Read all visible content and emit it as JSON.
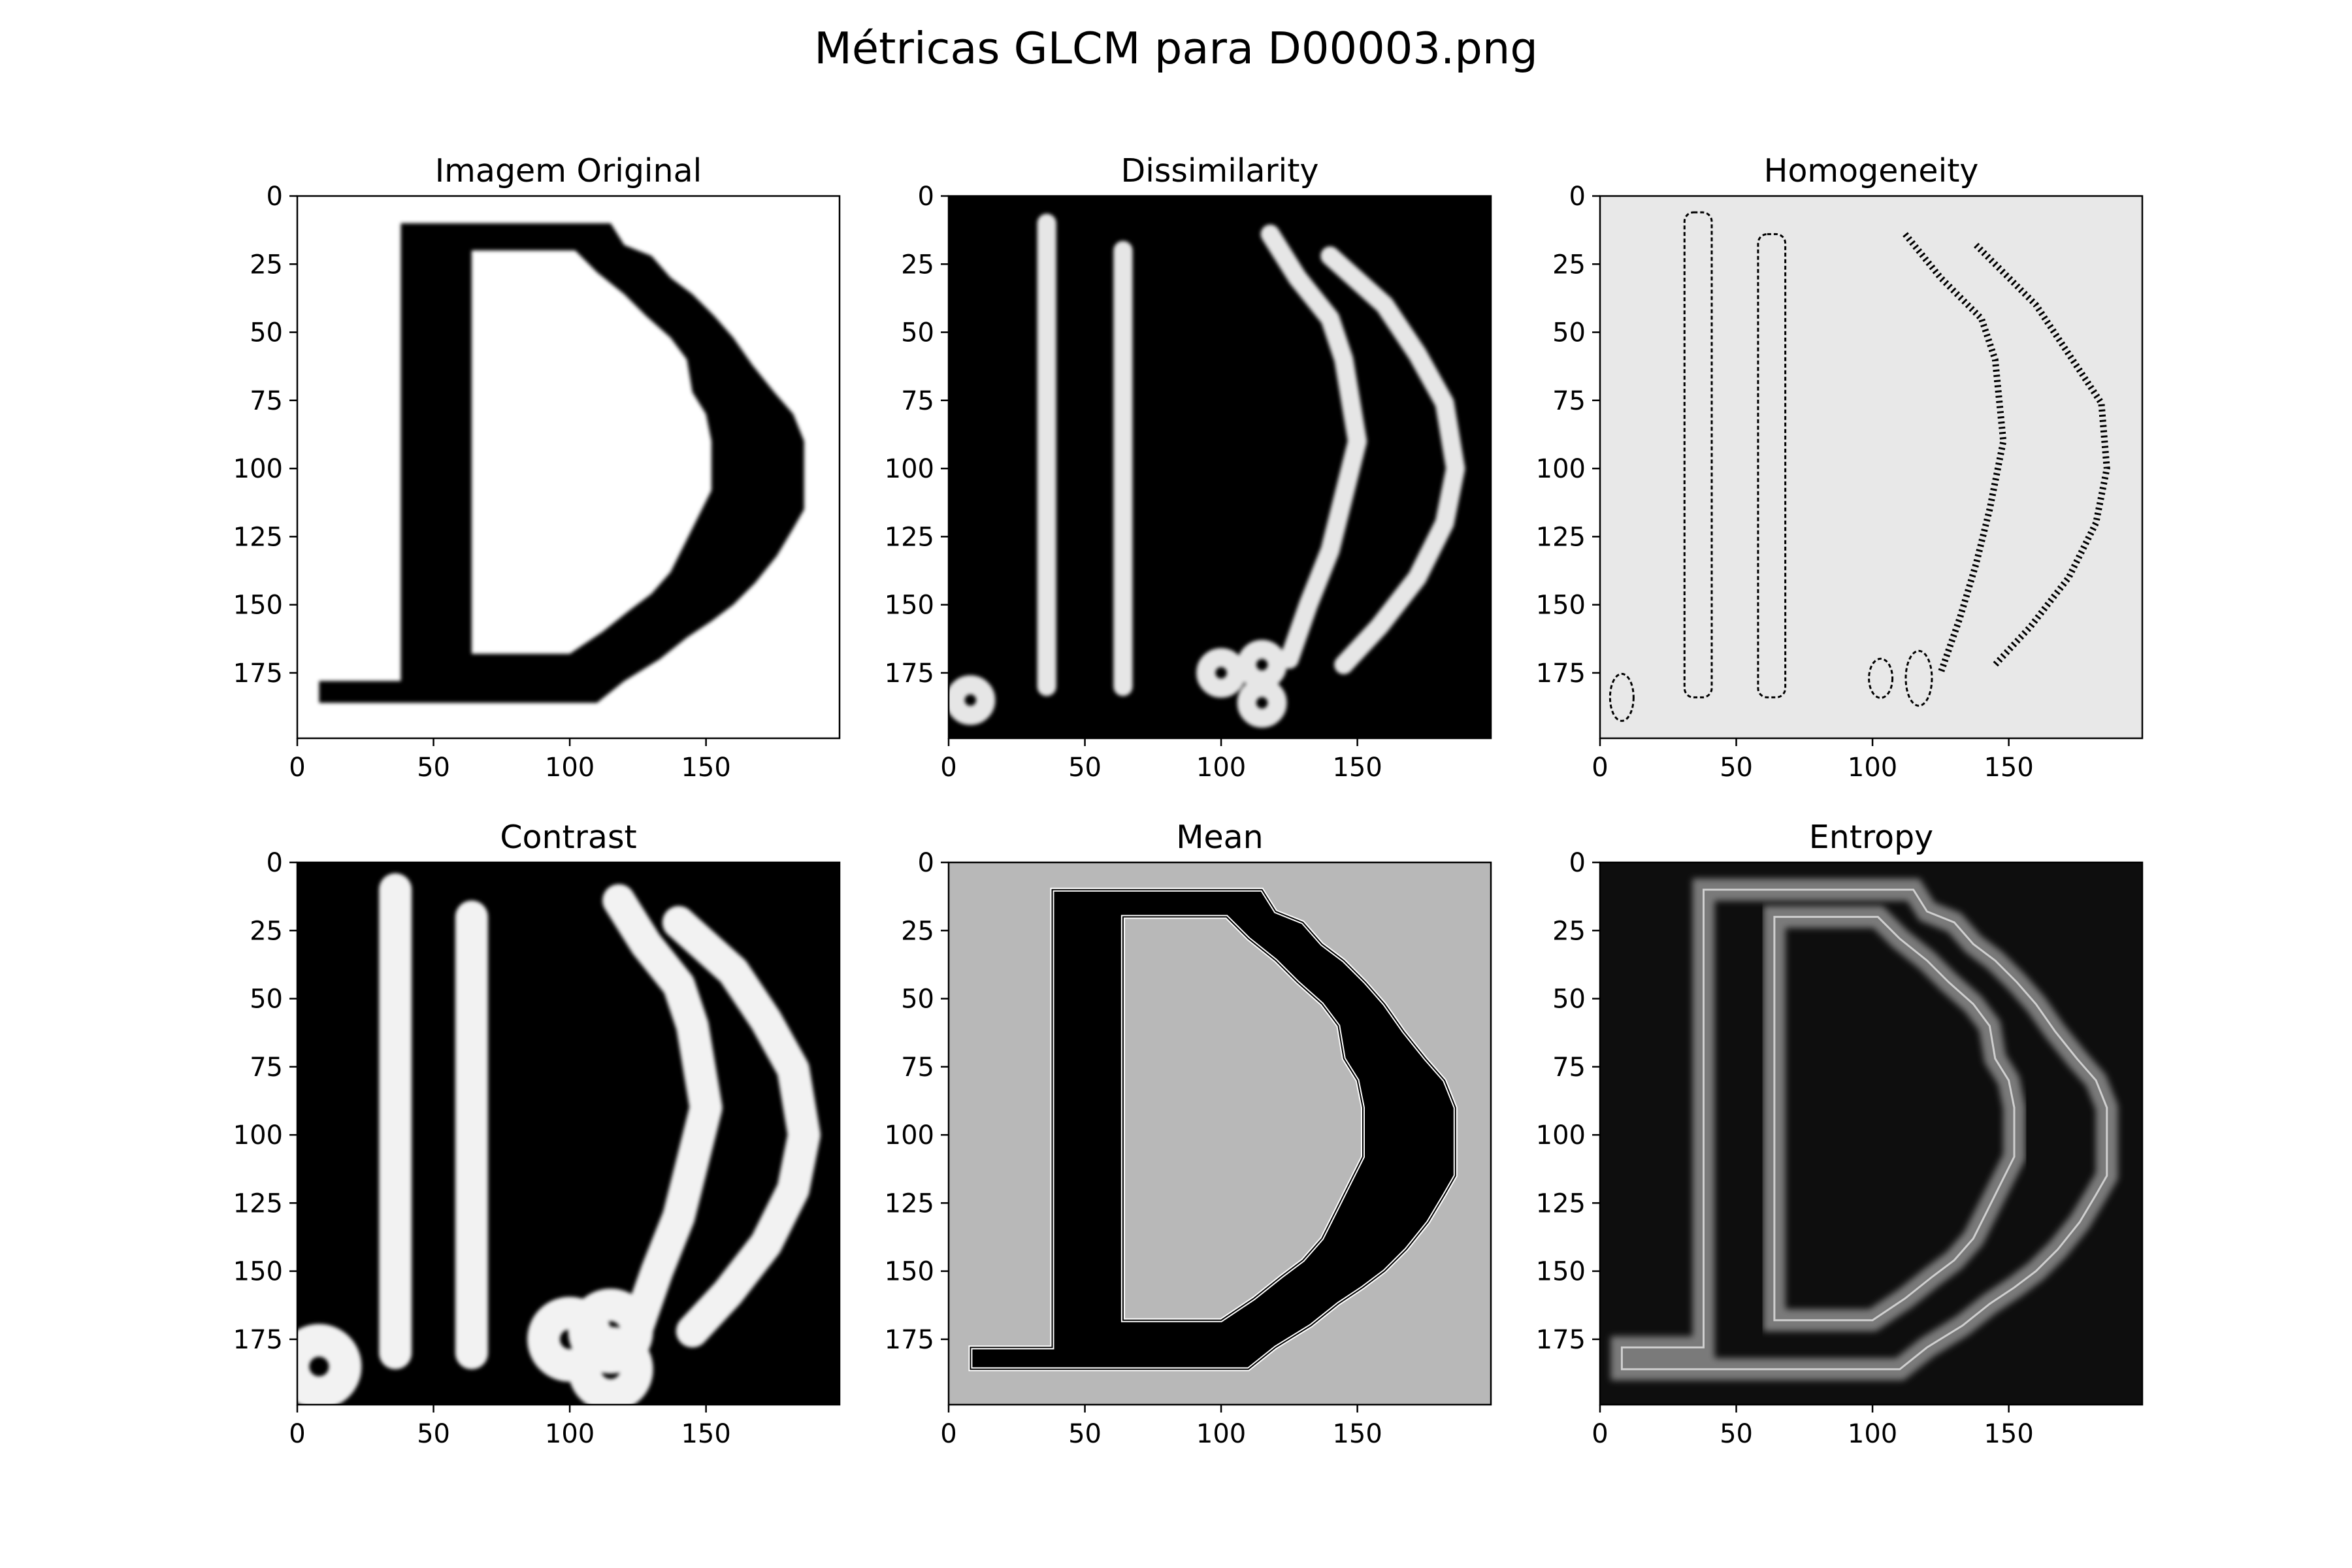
{
  "figure": {
    "title": "Métricas GLCM para D00003.png"
  },
  "chart_data": [
    {
      "type": "heatmap",
      "title": "Imagem Original",
      "background": "#ffffff",
      "foreground": "#000000",
      "xticks": [
        0,
        50,
        100,
        150
      ],
      "yticks": [
        0,
        25,
        50,
        75,
        100,
        125,
        150,
        175
      ],
      "xlim": [
        0,
        199
      ],
      "ylim": [
        199,
        0
      ]
    },
    {
      "type": "heatmap",
      "title": "Dissimilarity",
      "background": "#000000",
      "foreground": "#e6e6e6",
      "xticks": [
        0,
        50,
        100,
        150
      ],
      "yticks": [
        0,
        25,
        50,
        75,
        100,
        125,
        150,
        175
      ],
      "xlim": [
        0,
        199
      ],
      "ylim": [
        199,
        0
      ]
    },
    {
      "type": "heatmap",
      "title": "Homogeneity",
      "background": "#e8e8e8",
      "foreground": "#000000",
      "xticks": [
        0,
        50,
        100,
        150
      ],
      "yticks": [
        0,
        25,
        50,
        75,
        100,
        125,
        150,
        175
      ],
      "xlim": [
        0,
        199
      ],
      "ylim": [
        199,
        0
      ]
    },
    {
      "type": "heatmap",
      "title": "Contrast",
      "background": "#000000",
      "foreground": "#f2f2f2",
      "xticks": [
        0,
        50,
        100,
        150
      ],
      "yticks": [
        0,
        25,
        50,
        75,
        100,
        125,
        150,
        175
      ],
      "xlim": [
        0,
        199
      ],
      "ylim": [
        199,
        0
      ]
    },
    {
      "type": "heatmap",
      "title": "Mean",
      "background": "#b8b8b8",
      "foreground": "#000000",
      "xticks": [
        0,
        50,
        100,
        150
      ],
      "yticks": [
        0,
        25,
        50,
        75,
        100,
        125,
        150,
        175
      ],
      "xlim": [
        0,
        199
      ],
      "ylim": [
        199,
        0
      ]
    },
    {
      "type": "heatmap",
      "title": "Entropy",
      "background": "#0e0e0e",
      "foreground": "#7a7a7a",
      "xticks": [
        0,
        50,
        100,
        150
      ],
      "yticks": [
        0,
        25,
        50,
        75,
        100,
        125,
        150,
        175
      ],
      "xlim": [
        0,
        199
      ],
      "ylim": [
        199,
        0
      ]
    }
  ]
}
